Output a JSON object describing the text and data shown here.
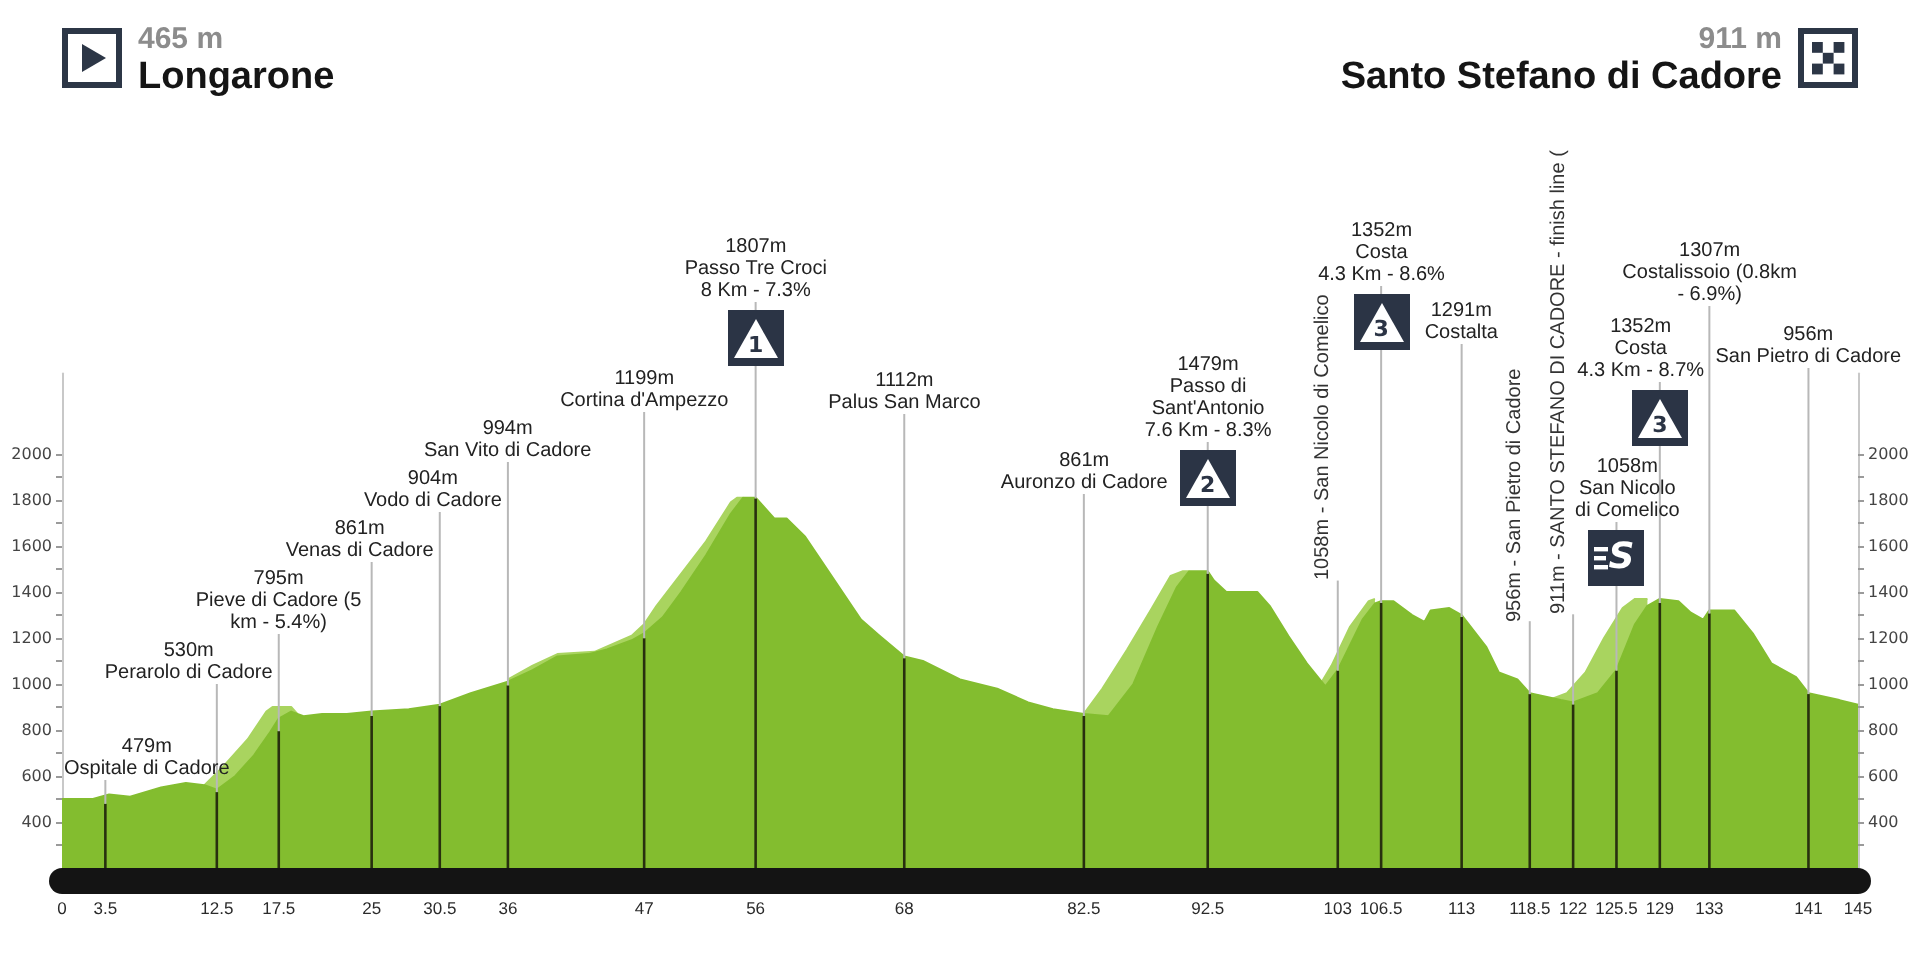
{
  "chart_data": {
    "type": "area",
    "series": [
      {
        "color": "#a9d45f",
        "x": [
          11.5,
          13,
          15,
          16.5,
          17,
          18.5,
          19,
          20,
          36,
          38,
          40,
          43,
          46,
          47,
          48,
          50,
          52,
          54,
          54.5,
          55,
          60,
          82.5,
          84,
          86,
          88,
          89.5,
          90.5,
          91,
          95,
          101.5,
          102.5,
          104,
          105.5,
          106,
          115,
          120,
          121.5,
          123,
          124.5,
          126,
          127,
          128
        ],
        "values": [
          560,
          640,
          760,
          880,
          900,
          900,
          870,
          null,
          1020,
          1080,
          1130,
          1140,
          1210,
          1260,
          1340,
          1480,
          1620,
          1790,
          1810,
          1810,
          null,
          870,
          980,
          1150,
          1330,
          1470,
          1490,
          1490,
          null,
          990,
          1080,
          1250,
          1360,
          1370,
          null,
          930,
          960,
          1050,
          1200,
          1330,
          1370,
          1370
        ]
      },
      {
        "color": "#83bd2f",
        "x": [
          0,
          2.5,
          3.8,
          5.5,
          8,
          10,
          11.5,
          12.5,
          14,
          15.5,
          16.8,
          17.5,
          18.5,
          19.5,
          21,
          23,
          25,
          28,
          30.5,
          33,
          36,
          38,
          40,
          42.5,
          44,
          46,
          47,
          48.5,
          50,
          52,
          54,
          55,
          56,
          57.5,
          58.5,
          60,
          62,
          64.5,
          66,
          68,
          69.5,
          72.5,
          75.5,
          78,
          80,
          82.5,
          84.5,
          86.5,
          88.5,
          90,
          91,
          92.5,
          93,
          94,
          96.5,
          97.5,
          99,
          100.5,
          102,
          103,
          105,
          106,
          106.5,
          107.5,
          109,
          110,
          110.5,
          112,
          113,
          115,
          116,
          117.5,
          118.5,
          121,
          122,
          124,
          125.5,
          127,
          128,
          129,
          130.5,
          131.5,
          132.5,
          133,
          135,
          136.5,
          138,
          140,
          141,
          143.5,
          145
        ],
        "values": [
          500,
          500,
          520,
          510,
          550,
          570,
          560,
          540,
          600,
          690,
          790,
          850,
          880,
          860,
          870,
          870,
          880,
          890,
          910,
          960,
          1010,
          1060,
          1120,
          1130,
          1150,
          1190,
          1220,
          1290,
          1400,
          1560,
          1740,
          1810,
          1810,
          1720,
          1720,
          1640,
          1480,
          1280,
          1210,
          1120,
          1100,
          1020,
          980,
          920,
          890,
          870,
          860,
          1000,
          1250,
          1420,
          1490,
          1490,
          1450,
          1400,
          1400,
          1340,
          1210,
          1090,
          990,
          1060,
          1280,
          1350,
          1360,
          1360,
          1300,
          1270,
          1320,
          1330,
          1300,
          1160,
          1050,
          1020,
          960,
          930,
          920,
          960,
          1060,
          1260,
          1340,
          1370,
          1360,
          1310,
          1280,
          1320,
          1320,
          1220,
          1090,
          1030,
          960,
          930,
          910
        ]
      },
      {
        "type": "bar",
        "color": "#28300f",
        "x": [
          3.5,
          12.5,
          17.5,
          25,
          30.5,
          36,
          47,
          56,
          68,
          82.5,
          92.5,
          103,
          106.5,
          113,
          118.5,
          122,
          125.5,
          129,
          133,
          141
        ],
        "values": [
          479,
          530,
          795,
          861,
          904,
          994,
          1199,
          1807,
          1112,
          861,
          1479,
          1058,
          1352,
          1291,
          956,
          911,
          1058,
          1352,
          1307,
          956
        ]
      }
    ],
    "xlim": [
      0,
      145
    ],
    "xticks": [
      0,
      3.5,
      12.5,
      17.5,
      25,
      30.5,
      36,
      47,
      56,
      68,
      82.5,
      92.5,
      103,
      106.5,
      113,
      118.5,
      122,
      125.5,
      129,
      133,
      141,
      145
    ],
    "ylim": [
      200,
      2350
    ],
    "yticks": [
      {
        "value": 300,
        "label": null
      },
      400,
      {
        "value": 500,
        "label": null
      },
      600,
      {
        "value": 700,
        "label": null
      },
      800,
      {
        "value": 900,
        "label": null
      },
      1000,
      {
        "value": 1100,
        "label": null
      },
      1200,
      {
        "value": 1300,
        "label": null
      },
      1400,
      {
        "value": 1500,
        "label": null
      },
      1600,
      {
        "value": 1700,
        "label": null
      },
      1800,
      {
        "value": 1900,
        "label": null
      },
      2000
    ],
    "y2lim": [
      200,
      2350
    ],
    "y2ticks": [
      {
        "value": 300,
        "label": null
      },
      400,
      {
        "value": 500,
        "label": null
      },
      600,
      {
        "value": 700,
        "label": null
      },
      800,
      {
        "value": 900,
        "label": null
      },
      1000,
      {
        "value": 1100,
        "label": null
      },
      1200,
      {
        "value": 1300,
        "label": null
      },
      1400,
      {
        "value": 1500,
        "label": null
      },
      1600,
      {
        "value": 1700,
        "label": null
      },
      1800,
      {
        "value": 1900,
        "label": null
      },
      2000
    ],
    "annotations": [
      "465 m\nLongarone",
      "911 m\nSanto Stefano di Cadore",
      {
        "text": "479m\nOspitale di Cadore",
        "x": 3.5,
        "y": 479
      },
      {
        "text": "530m\nPerarolo di Cadore",
        "x": 12.5,
        "y": 530
      },
      {
        "text": "795m\nPieve di Cadore (5\nkm - 5.4%)",
        "x": 17.5,
        "y": 795
      },
      {
        "text": "861m\nVenas di Cadore",
        "x": 25,
        "y": 861
      },
      {
        "text": "904m\nVodo di Cadore",
        "x": 30.5,
        "y": 904
      },
      {
        "text": "994m\nSan Vito di Cadore",
        "x": 36,
        "y": 994
      },
      {
        "text": "1199m\nCortina d'Ampezzo",
        "x": 47,
        "y": 1199
      },
      {
        "text": "1807m\nPasso Tre Croci\n8 Km - 7.3%",
        "x": 56,
        "y": 1807
      },
      "1",
      {
        "text": "1112m\nPalus San Marco",
        "x": 68,
        "y": 1112
      },
      {
        "text": "861m\nAuronzo di Cadore",
        "x": 82.5,
        "y": 861
      },
      {
        "text": "1479m\nPasso di\nSant'Antonio\n7.6 Km - 8.3%",
        "x": 92.5,
        "y": 1479
      },
      "2",
      {
        "text": "1058m - San Nicolo di Comelico",
        "x": 103,
        "y": 1058
      },
      {
        "text": "1352m\nCosta\n4.3 Km - 8.6%",
        "x": 106.5,
        "y": 1352
      },
      "3",
      {
        "text": "1291m\nCostalta",
        "x": 113,
        "y": 1291
      },
      {
        "text": "956m - San Pietro di Cadore",
        "x": 118.5,
        "y": 956
      },
      {
        "text": "911m - SANTO STEFANO DI CADORE - finish line (",
        "x": 122,
        "y": 911
      },
      {
        "text": "1058m\nSan Nicolo\ndi Comelico",
        "x": 125.5,
        "y": 1058
      },
      "S",
      {
        "text": "1352m\nCosta\n4.3 Km - 8.7%",
        "x": 129,
        "y": 1352
      },
      "3",
      {
        "text": "1307m\nCostalissoio (0.8km\n- 6.9%)",
        "x": 133,
        "y": 1307
      },
      {
        "text": "956m\nSan Pietro di Cadore",
        "x": 141,
        "y": 956
      }
    ]
  }
}
